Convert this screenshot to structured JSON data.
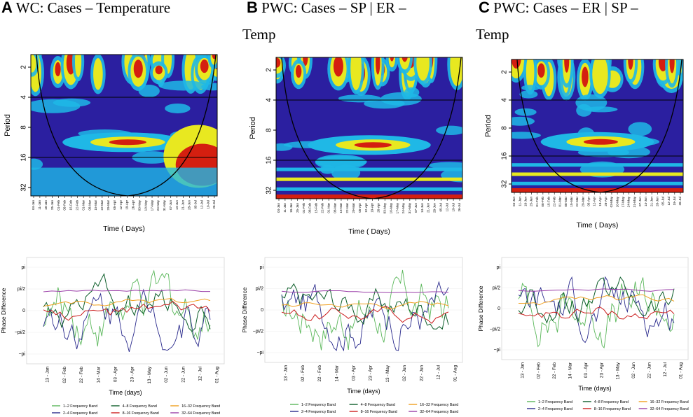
{
  "panels": [
    {
      "letter": "A",
      "title": "WC: Cases – Temperature",
      "title_line2": "",
      "wavelet": {
        "ylabel": "Period",
        "xlabel": "Time ( Days)",
        "period_ticks": [
          "2",
          "4",
          "8",
          "16",
          "32"
        ],
        "date_ticks": [
          "04-Jan",
          "11-Jan",
          "18-Jan",
          "25-Jan",
          "01-Feb",
          "08-Feb",
          "15-Feb",
          "22-Feb",
          "01-Mar",
          "08-Mar",
          "15-Mar",
          "22-Mar",
          "29-Mar",
          "05-Apr",
          "12-Apr",
          "19-Apr",
          "26-Apr",
          "03-May",
          "10-May",
          "17-May",
          "24-May",
          "31-May",
          "07-Jun",
          "14-Jun",
          "21-Jun",
          "28-Jun",
          "05-Jul",
          "12-Jul",
          "19-Jul",
          "26-Jul"
        ]
      },
      "phase": {
        "ylabel": "Phase Difference",
        "xlabel": "Time (days)",
        "y_ticks": [
          "pi",
          "pi/2",
          "0",
          "−pi/2",
          "−pi"
        ],
        "x_ticks": [
          "13 - Jan",
          "02 - Feb",
          "22 - Feb",
          "14 - Mar",
          "03 - Apr",
          "23 - Apr",
          "13 - May",
          "02 - Jun",
          "22 - Jun",
          "12 - Jul",
          "01 - Aug"
        ]
      }
    },
    {
      "letter": "B",
      "title": "PWC:  Cases  –  SP  |  ER  –",
      "title_line2": "Temp",
      "wavelet": {
        "ylabel": "Period",
        "xlabel": "Time ( Days)",
        "period_ticks": [
          "2",
          "4",
          "8",
          "16",
          "32"
        ],
        "date_ticks": [
          "04-Jan",
          "11-Jan",
          "18-Jan",
          "25-Jan",
          "01-Feb",
          "08-Feb",
          "15-Feb",
          "22-Feb",
          "01-Mar",
          "08-Mar",
          "15-Mar",
          "22-Mar",
          "29-Mar",
          "05-Apr",
          "12-Apr",
          "19-Apr",
          "26-Apr",
          "03-May",
          "10-May",
          "17-May",
          "24-May",
          "31-May",
          "07-Jun",
          "14-Jun",
          "21-Jun",
          "28-Jun",
          "05-Jul",
          "12-Jul",
          "19-Jul",
          "26-Jul"
        ]
      },
      "phase": {
        "ylabel": "Phase Difference",
        "xlabel": "Time (days)",
        "y_ticks": [
          "pi",
          "pi/2",
          "0",
          "−pi/2",
          "−pi"
        ],
        "x_ticks": [
          "13 - Jan",
          "02 - Feb",
          "22 - Feb",
          "14 - Mar",
          "03 - Apr",
          "23 - Apr",
          "13 - May",
          "02 - Jun",
          "22 - Jun",
          "12 - Jul",
          "01 - Aug"
        ]
      }
    },
    {
      "letter": "C",
      "title": "PWC:  Cases  –  ER  |  SP  –",
      "title_line2": "Temp",
      "wavelet": {
        "ylabel": "Period",
        "xlabel": "Time ( Days)",
        "period_ticks": [
          "2",
          "4",
          "8",
          "16",
          "32"
        ],
        "date_ticks": [
          "04-Jan",
          "11-Jan",
          "18-Jan",
          "25-Jan",
          "01-Feb",
          "08-Feb",
          "15-Feb",
          "22-Feb",
          "01-Mar",
          "08-Mar",
          "15-Mar",
          "22-Mar",
          "29-Mar",
          "05-Apr",
          "12-Apr",
          "19-Apr",
          "26-Apr",
          "03-May",
          "10-May",
          "17-May",
          "24-May",
          "31-May",
          "07-Jun",
          "14-Jun",
          "21-Jun",
          "28-Jun",
          "05-Jul",
          "12-Jul",
          "19-Jul",
          "26-Jul"
        ]
      },
      "phase": {
        "ylabel": "Phase Difference",
        "xlabel": "Time (days)",
        "y_ticks": [
          "pi",
          "pi/2",
          "0",
          "−pi/2",
          "−pi"
        ],
        "x_ticks": [
          "13 - Jan",
          "02 - Feb",
          "22 - Feb",
          "14 - Mar",
          "03 - Apr",
          "23 - Apr",
          "13 - May",
          "02 - Jun",
          "22 - Jun",
          "12 - Jul",
          "01 - Aug"
        ]
      }
    }
  ],
  "legend": [
    {
      "label": "1–2 Frequency Band",
      "color": "#5ab75a"
    },
    {
      "label": "2–4 Frequency Band",
      "color": "#2a2a8c"
    },
    {
      "label": "4–8 Frequency Band",
      "color": "#0d5e2a"
    },
    {
      "label": "8–16 Frequency Band",
      "color": "#cc2020"
    },
    {
      "label": "16–32 Frequency Band",
      "color": "#f0a020"
    },
    {
      "label": "32–64 Frequency Band",
      "color": "#9a3fa8"
    }
  ],
  "colors": {
    "wavelet_low": "#2b1fa0",
    "wavelet_mid": "#1fb8e6",
    "wavelet_high": "#e8e820",
    "wavelet_peak": "#d41f10"
  }
}
